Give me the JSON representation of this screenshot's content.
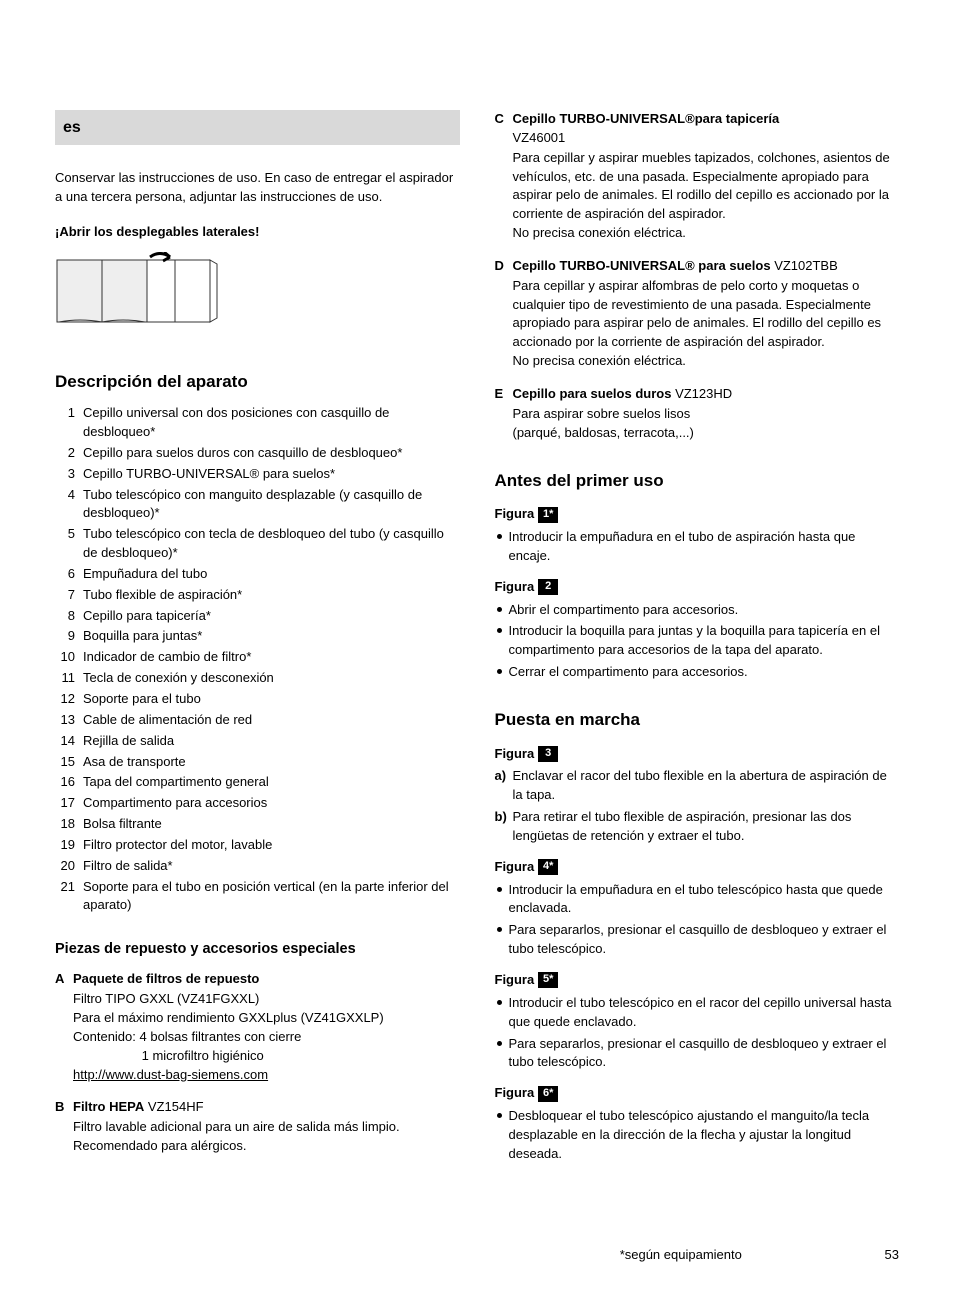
{
  "lang_code": "es",
  "intro": "Conservar las instrucciones de uso. En caso de entregar el aspirador a una tercera persona, adjuntar las instrucciones de uso.",
  "fold_instruction": "¡Abrir los desplegables laterales!",
  "svg": {
    "page_fill": "#eeeeee",
    "stroke": "#333333"
  },
  "sections": {
    "description": "Descripción del aparato",
    "spare": "Piezas de repuesto y accesorios especiales",
    "before": "Antes del primer uso",
    "startup": "Puesta en marcha"
  },
  "desc_items": [
    "Cepillo universal con dos posiciones con casquillo de desbloqueo*",
    "Cepillo para suelos duros con casquillo de desbloqueo*",
    "Cepillo TURBO-UNIVERSAL® para suelos*",
    "Tubo telescópico con manguito desplazable (y casquillo de desbloqueo)*",
    "Tubo telescópico con tecla de desbloqueo del tubo (y casquillo de desbloqueo)*",
    "Empuñadura del tubo",
    "Tubo flexible de aspiración*",
    "Cepillo para tapicería*",
    "Boquilla para juntas*",
    "Indicador de cambio de filtro*",
    "Tecla de conexión y desconexión",
    "Soporte para el tubo",
    "Cable de alimentación de red",
    "Rejilla de salida",
    "Asa de transporte",
    "Tapa del compartimento general",
    "Compartimento para accesorios",
    "Bolsa filtrante",
    "Filtro protector del motor, lavable",
    "Filtro de salida*",
    "Soporte para el tubo en posición vertical (en la parte inferior del aparato)"
  ],
  "spare": {
    "A": {
      "title": "Paquete de filtros de repuesto",
      "model": "",
      "lines": [
        "Filtro TIPO GXXL (VZ41FGXXL)",
        "Para el máximo rendimiento GXXLplus (VZ41GXXLP)",
        "Contenido: 4 bolsas filtrantes con cierre",
        "                   1 microfiltro higiénico"
      ],
      "url": "http://www.dust-bag-siemens.com"
    },
    "B": {
      "title": "Filtro HEPA",
      "model": "VZ154HF",
      "lines": [
        "Filtro lavable adicional para un aire de salida más limpio.",
        "Recomendado para alérgicos."
      ]
    },
    "C": {
      "title": "Cepillo TURBO-UNIVERSAL®para tapicería",
      "model": "",
      "model_below": "VZ46001",
      "lines": [
        "Para cepillar y aspirar muebles tapizados, colchones, asientos de vehículos, etc. de una pasada. Especialmente apropiado para aspirar pelo de animales. El rodillo del cepillo es accionado por la corriente de aspiración del aspirador.",
        "No precisa conexión eléctrica."
      ]
    },
    "D": {
      "title": "Cepillo TURBO-UNIVERSAL® para suelos",
      "model": "VZ102TBB",
      "lines": [
        "Para cepillar y aspirar alfombras de pelo corto y moquetas o cualquier tipo de revestimiento de una pasada. Especialmente apropiado para aspirar pelo de animales. El rodillo del cepillo es accionado por la corriente de aspiración del aspirador.",
        "No precisa conexión eléctrica."
      ]
    },
    "E": {
      "title": "Cepillo para suelos duros",
      "model": "VZ123HD",
      "lines": [
        "Para aspirar sobre suelos lisos",
        "(parqué, baldosas, terracota,...)"
      ]
    }
  },
  "fig_label": "Figura",
  "figures": {
    "1": {
      "num": "1*",
      "bullets": [
        "Introducir la empuñadura en el tubo de aspiración hasta que encaje."
      ]
    },
    "2": {
      "num": "2",
      "bullets": [
        "Abrir el compartimento para accesorios.",
        "Introducir la boquilla para juntas y la boquilla para tapicería en el compartimento para accesorios de la tapa del aparato.",
        "Cerrar el compartimento para accesorios."
      ]
    },
    "3": {
      "num": "3",
      "ab": [
        {
          "k": "a)",
          "t": "Enclavar el racor del tubo flexible en la abertura de aspiración de la tapa."
        },
        {
          "k": "b)",
          "t": "Para retirar el tubo flexible de aspiración, presionar las dos lengüetas de retención y extraer el tubo."
        }
      ]
    },
    "4": {
      "num": "4*",
      "bullets": [
        "Introducir la empuñadura en el tubo telescópico hasta que quede enclavada.",
        "Para separarlos, presionar el casquillo de desbloqueo y extraer el tubo telescópico."
      ]
    },
    "5": {
      "num": "5*",
      "bullets": [
        "Introducir el tubo telescópico en el racor del cepillo universal hasta que quede enclavado.",
        "Para separarlos, presionar el casquillo de desbloqueo y extraer el tubo telescópico."
      ]
    },
    "6": {
      "num": "6*",
      "bullets": [
        "Desbloquear el tubo telescópico ajustando el manguito/la tecla desplazable en la dirección de la flecha y ajustar la longitud deseada."
      ]
    }
  },
  "footer_note": "*según equipamiento",
  "page_num": "53"
}
